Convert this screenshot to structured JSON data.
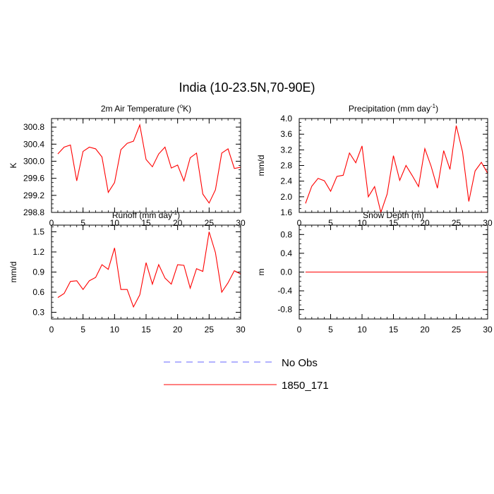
{
  "figure": {
    "title": "India (10-23.5N,70-90E)"
  },
  "legend": {
    "placement": "bottom-center",
    "items": [
      {
        "label": "No Obs",
        "color": "#6666ff",
        "style": "dashed"
      },
      {
        "label": "1850_171",
        "color": "#ff0000",
        "style": "solid"
      }
    ]
  },
  "chart_data": [
    {
      "type": "line",
      "title_parts": [
        "2m Air Temperature (",
        "o",
        "K)"
      ],
      "ylabel": "K",
      "xlim": [
        0,
        30
      ],
      "ylim": [
        298.8,
        301.0
      ],
      "xticks": [
        0,
        5,
        10,
        15,
        20,
        25,
        30
      ],
      "xtick_labels": [
        "0",
        "5",
        "10",
        "15",
        "20",
        "25",
        "30"
      ],
      "yticks": [
        298.8,
        299.2,
        299.6,
        300.0,
        300.4,
        300.8
      ],
      "ytick_labels": [
        "298.8",
        "299.2",
        "299.6",
        "300.0",
        "300.4",
        "300.8"
      ],
      "x": [
        1,
        2,
        3,
        4,
        5,
        6,
        7,
        8,
        9,
        10,
        11,
        12,
        13,
        14,
        15,
        16,
        17,
        18,
        19,
        20,
        21,
        22,
        23,
        24,
        25,
        26,
        27,
        28,
        29,
        30
      ],
      "series": [
        {
          "name": "1850_171",
          "color": "#ff0000",
          "values": [
            300.17,
            300.33,
            300.38,
            299.54,
            300.23,
            300.33,
            300.29,
            300.1,
            299.27,
            299.5,
            300.27,
            300.42,
            300.47,
            300.85,
            300.04,
            299.87,
            300.17,
            300.33,
            299.84,
            299.91,
            299.54,
            300.08,
            300.19,
            299.23,
            299.02,
            299.33,
            300.19,
            300.29,
            299.83,
            299.86
          ]
        }
      ]
    },
    {
      "type": "line",
      "title_parts": [
        "Precipitation (mm day",
        "-1",
        ")"
      ],
      "ylabel": "mm/d",
      "xlim": [
        0,
        30
      ],
      "ylim": [
        1.6,
        4.0
      ],
      "xticks": [
        0,
        5,
        10,
        15,
        20,
        25,
        30
      ],
      "xtick_labels": [
        "0",
        "5",
        "10",
        "15",
        "20",
        "25",
        "30"
      ],
      "yticks": [
        1.6,
        2.0,
        2.4,
        2.8,
        3.2,
        3.6,
        4.0
      ],
      "ytick_labels": [
        "1.6",
        "2.0",
        "2.4",
        "2.8",
        "3.2",
        "3.6",
        "4.0"
      ],
      "x": [
        1,
        2,
        3,
        4,
        5,
        6,
        7,
        8,
        9,
        10,
        11,
        12,
        13,
        14,
        15,
        16,
        17,
        18,
        19,
        20,
        21,
        22,
        23,
        24,
        25,
        26,
        27,
        28,
        29,
        30
      ],
      "series": [
        {
          "name": "1850_171",
          "color": "#ff0000",
          "values": [
            1.83,
            2.27,
            2.47,
            2.41,
            2.14,
            2.52,
            2.55,
            3.12,
            2.87,
            3.3,
            2.0,
            2.26,
            1.6,
            2.07,
            3.05,
            2.42,
            2.8,
            2.54,
            2.26,
            3.23,
            2.78,
            2.22,
            3.18,
            2.7,
            3.82,
            3.15,
            1.88,
            2.66,
            2.88,
            2.6
          ]
        }
      ]
    },
    {
      "type": "line",
      "title_parts": [
        "Runoff (mm day",
        "-1",
        ")"
      ],
      "ylabel": "mm/d",
      "xlim": [
        0,
        30
      ],
      "ylim": [
        0.2,
        1.6
      ],
      "xticks": [
        0,
        5,
        10,
        15,
        20,
        25,
        30
      ],
      "xtick_labels": [
        "0",
        "5",
        "10",
        "15",
        "20",
        "25",
        "30"
      ],
      "yticks": [
        0.3,
        0.6,
        0.9,
        1.2,
        1.5
      ],
      "ytick_labels": [
        "0.3",
        "0.6",
        "0.9",
        "1.2",
        "1.5"
      ],
      "x": [
        1,
        2,
        3,
        4,
        5,
        6,
        7,
        8,
        9,
        10,
        11,
        12,
        13,
        14,
        15,
        16,
        17,
        18,
        19,
        20,
        21,
        22,
        23,
        24,
        25,
        26,
        27,
        28,
        29,
        30
      ],
      "series": [
        {
          "name": "1850_171",
          "color": "#ff0000",
          "values": [
            0.52,
            0.58,
            0.76,
            0.77,
            0.64,
            0.77,
            0.82,
            1.01,
            0.94,
            1.26,
            0.64,
            0.64,
            0.38,
            0.56,
            1.04,
            0.72,
            1.01,
            0.81,
            0.72,
            1.01,
            1.0,
            0.66,
            0.95,
            0.91,
            1.5,
            1.19,
            0.6,
            0.74,
            0.92,
            0.87
          ]
        }
      ]
    },
    {
      "type": "line",
      "title_parts": [
        "Snow Depth (m)"
      ],
      "ylabel": "m",
      "xlim": [
        0,
        30
      ],
      "ylim": [
        -1.0,
        1.0
      ],
      "xticks": [
        0,
        5,
        10,
        15,
        20,
        25,
        30
      ],
      "xtick_labels": [
        "0",
        "5",
        "10",
        "15",
        "20",
        "25",
        "30"
      ],
      "yticks": [
        -0.8,
        -0.4,
        0.0,
        0.4,
        0.8
      ],
      "ytick_labels": [
        "-0.8",
        "-0.4",
        "0.0",
        "0.4",
        "0.8"
      ],
      "x": [
        1,
        2,
        3,
        4,
        5,
        6,
        7,
        8,
        9,
        10,
        11,
        12,
        13,
        14,
        15,
        16,
        17,
        18,
        19,
        20,
        21,
        22,
        23,
        24,
        25,
        26,
        27,
        28,
        29,
        30
      ],
      "series": [
        {
          "name": "1850_171",
          "color": "#ff0000",
          "values": [
            0,
            0,
            0,
            0,
            0,
            0,
            0,
            0,
            0,
            0,
            0,
            0,
            0,
            0,
            0,
            0,
            0,
            0,
            0,
            0,
            0,
            0,
            0,
            0,
            0,
            0,
            0,
            0,
            0,
            0
          ]
        }
      ]
    }
  ]
}
